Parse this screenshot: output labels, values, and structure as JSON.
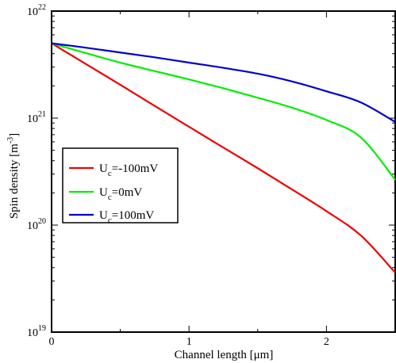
{
  "chart_data": {
    "type": "line",
    "xlabel": "Channel length [μm]",
    "ylabel": "Spin density [m",
    "ylabel_exponent": "-3",
    "ylabel_close": "]",
    "xlim": [
      0,
      2.5
    ],
    "ylim": [
      1e+19,
      1e+22
    ],
    "yscale": "log",
    "grid": false,
    "legend_placement": "center-left",
    "x_ticks": [
      "0",
      "1",
      "2"
    ],
    "y_ticks": [
      {
        "base": "10",
        "exp": "19"
      },
      {
        "base": "10",
        "exp": "20"
      },
      {
        "base": "10",
        "exp": "21"
      },
      {
        "base": "10",
        "exp": "22"
      }
    ],
    "series": [
      {
        "name_main": "U",
        "name_sub": "c",
        "name_rest": "=-100mV",
        "color": "#ee0000",
        "x": [
          0,
          0.25,
          0.5,
          0.75,
          1.0,
          1.25,
          1.5,
          1.75,
          2.0,
          2.25,
          2.5
        ],
        "values": [
          5e+21,
          3.2e+21,
          2.05e+21,
          1.3e+21,
          8.3e+20,
          5.3e+20,
          3.4e+20,
          2.15e+20,
          1.35e+20,
          8e+19,
          3.6e+19
        ]
      },
      {
        "name_main": "U",
        "name_sub": "c",
        "name_rest": "=0mV",
        "color": "#00ee00",
        "x": [
          0,
          0.25,
          0.5,
          0.75,
          1.0,
          1.25,
          1.5,
          1.75,
          2.0,
          2.25,
          2.5
        ],
        "values": [
          5e+21,
          4.05e+21,
          3.3e+21,
          2.75e+21,
          2.3e+21,
          1.9e+21,
          1.55e+21,
          1.25e+21,
          9.6e+20,
          6.6e+20,
          2.65e+20
        ]
      },
      {
        "name_main": "U",
        "name_sub": "c",
        "name_rest": "=100mV",
        "color": "#0000cc",
        "x": [
          0,
          0.25,
          0.5,
          0.75,
          1.0,
          1.25,
          1.5,
          1.75,
          2.0,
          2.25,
          2.5
        ],
        "values": [
          5e+21,
          4.55e+21,
          4.1e+21,
          3.7e+21,
          3.3e+21,
          2.95e+21,
          2.6e+21,
          2.2e+21,
          1.78e+21,
          1.4e+21,
          9.2e+20
        ]
      }
    ]
  }
}
